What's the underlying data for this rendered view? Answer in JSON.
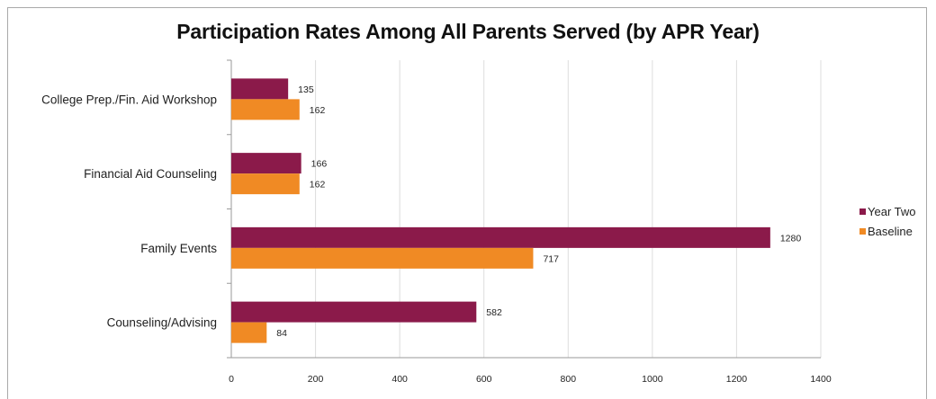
{
  "chart_data": {
    "type": "bar",
    "orientation": "horizontal",
    "title": "Participation Rates Among All Parents Served (by APR Year)",
    "categories": [
      "College Prep./Fin. Aid Workshop",
      "Financial Aid Counseling",
      "Family Events",
      "Counseling/Advising"
    ],
    "series": [
      {
        "name": "Year Two",
        "color": "#8b1a4a",
        "values": [
          135,
          166,
          1280,
          582
        ]
      },
      {
        "name": "Baseline",
        "color": "#f08a24",
        "values": [
          162,
          162,
          717,
          84
        ]
      }
    ],
    "xlim": [
      0,
      1400
    ],
    "xticks": [
      0,
      200,
      400,
      600,
      800,
      1000,
      1200,
      1400
    ],
    "grid": true,
    "legend_position": "right",
    "data_labels": true
  }
}
